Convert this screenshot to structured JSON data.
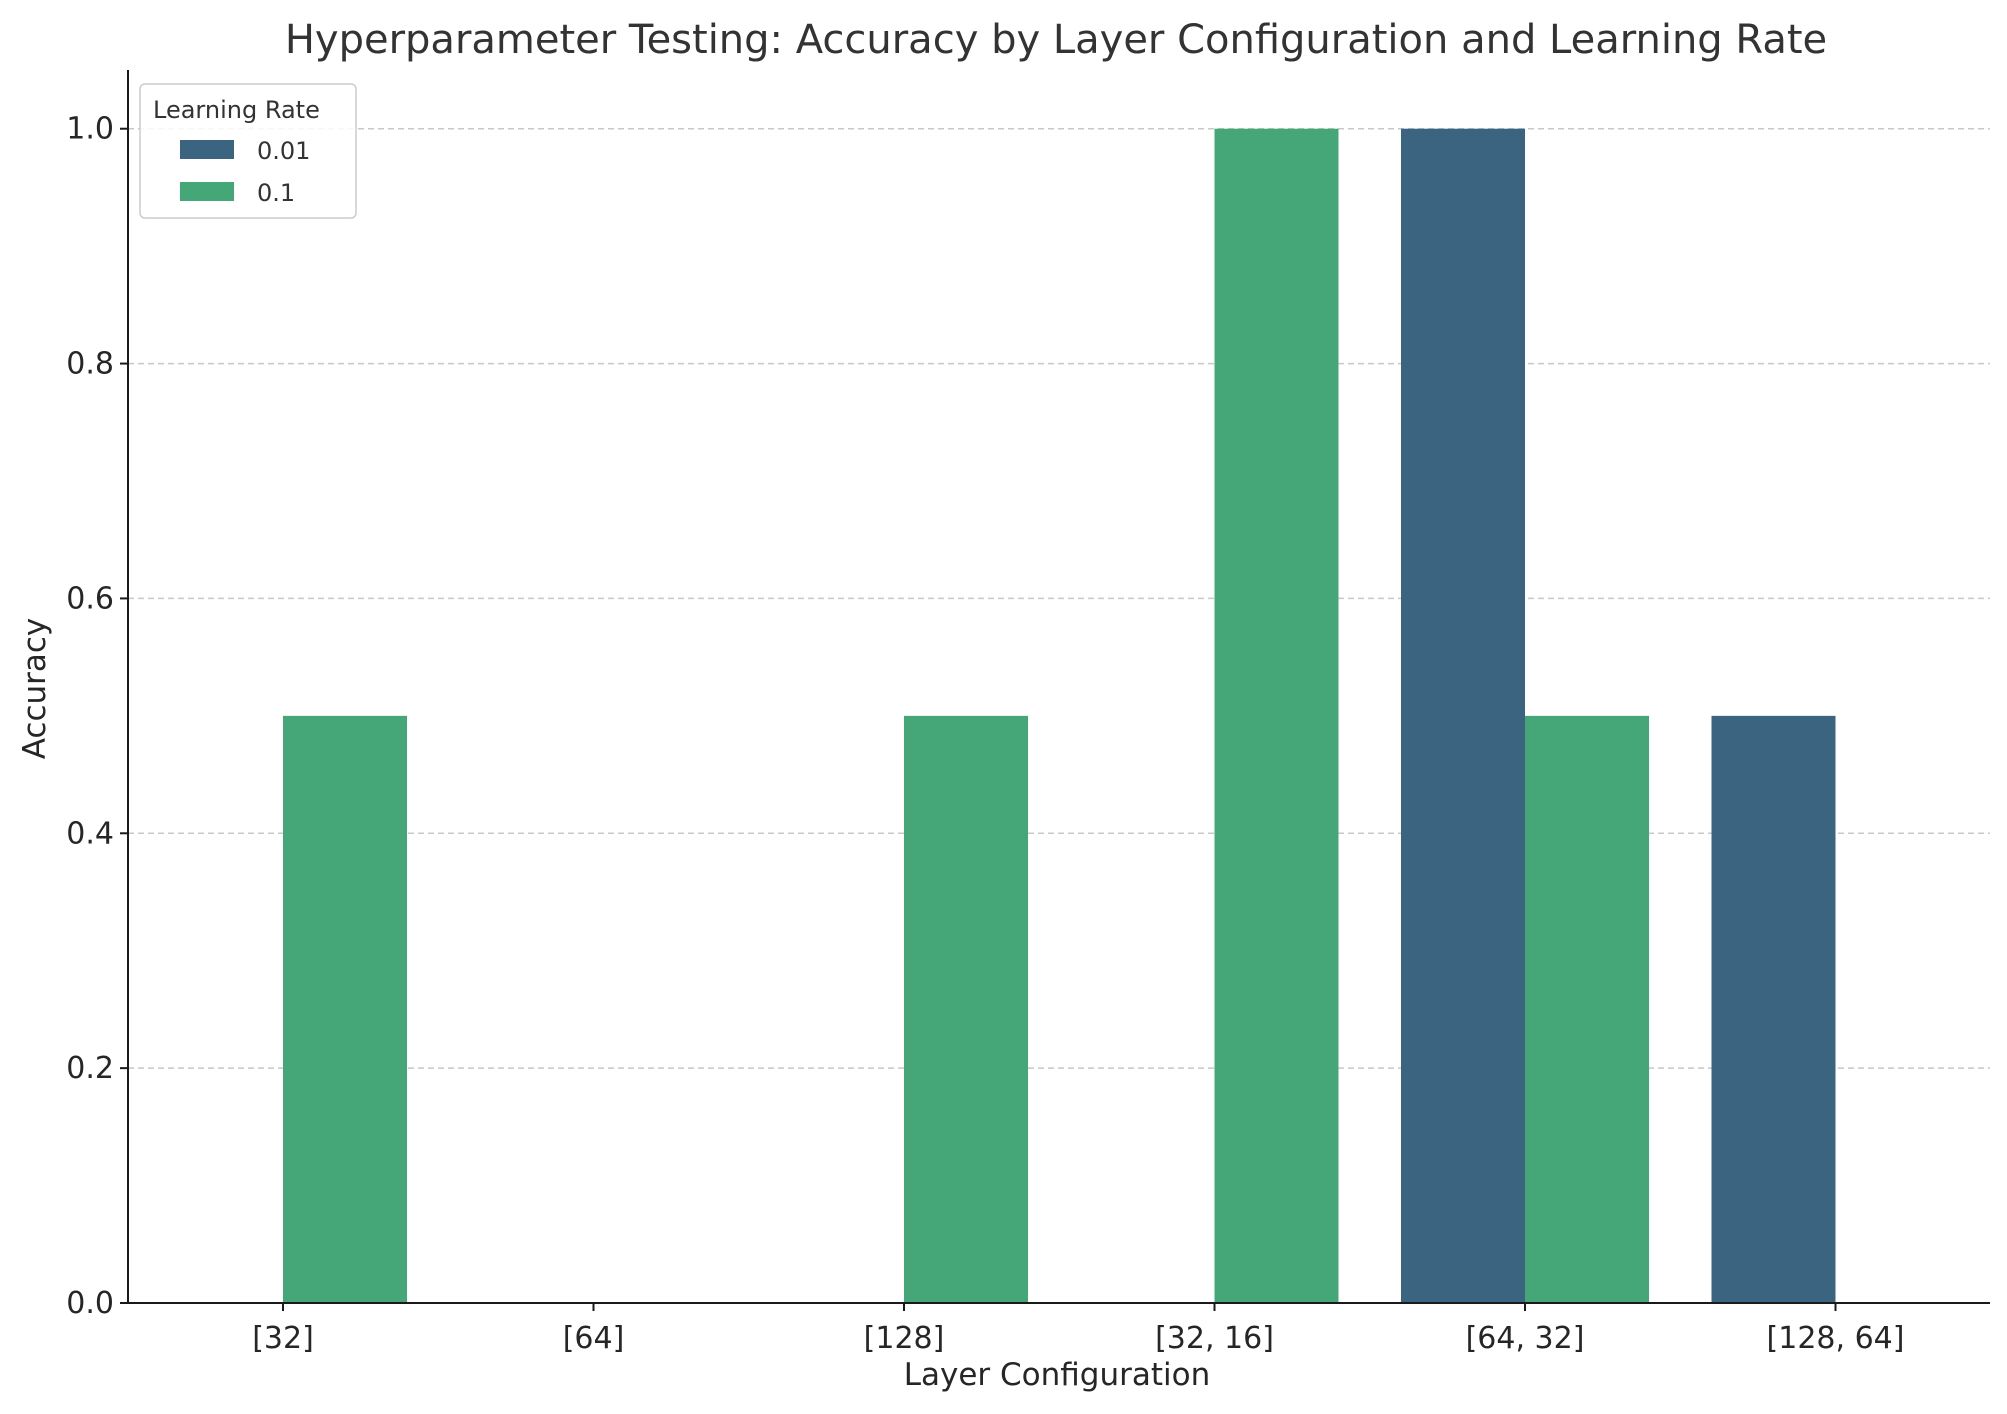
{
  "chart_data": {
    "type": "bar",
    "title": "Hyperparameter Testing: Accuracy by Layer Configuration and Learning Rate",
    "xlabel": "Layer Configuration",
    "ylabel": "Accuracy",
    "categories": [
      "[32]",
      "[64]",
      "[128]",
      "[32, 16]",
      "[64, 32]",
      "[128, 64]"
    ],
    "series": [
      {
        "name": "0.01",
        "values": [
          0.0,
          0.0,
          0.0,
          0.0,
          1.0,
          0.5
        ],
        "color": "#3b6480"
      },
      {
        "name": "0.1",
        "values": [
          0.5,
          0.0,
          0.5,
          1.0,
          0.5,
          0.0
        ],
        "color": "#45a778"
      }
    ],
    "ylim": [
      0.0,
      1.05
    ],
    "yticks": [
      "0.0",
      "0.2",
      "0.4",
      "0.6",
      "0.8",
      "1.0"
    ],
    "ytick_values": [
      0.0,
      0.2,
      0.4,
      0.6,
      0.8,
      1.0
    ],
    "grid": "y, dashed",
    "legend": {
      "title": "Learning Rate",
      "placement": "upper-left"
    }
  }
}
